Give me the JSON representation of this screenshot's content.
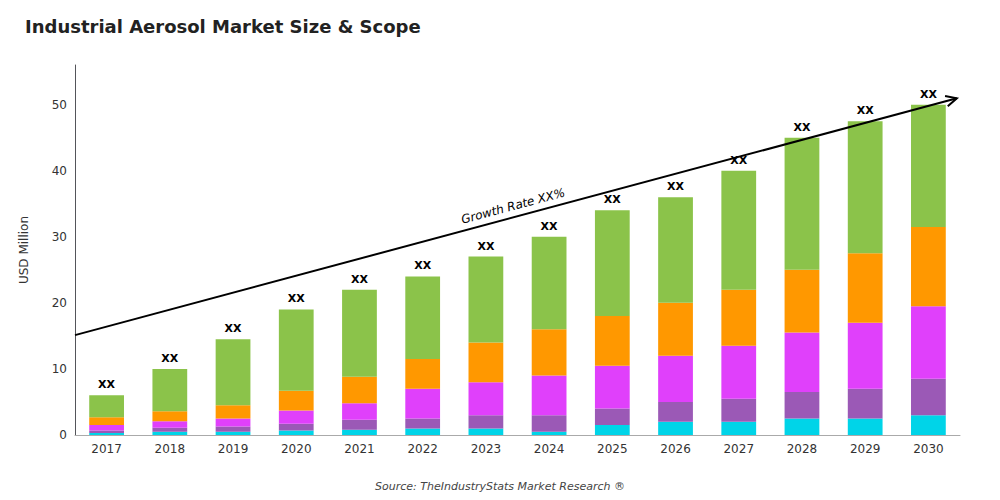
{
  "chart_data": {
    "type": "bar",
    "title": "Industrial Aerosol Market Size & Scope",
    "ylabel": "USD Million",
    "source": "Source: TheIndustryStats Market Research ®",
    "categories": [
      "2017",
      "2018",
      "2019",
      "2020",
      "2021",
      "2022",
      "2023",
      "2024",
      "2025",
      "2026",
      "2027",
      "2028",
      "2029",
      "2030"
    ],
    "stacked": true,
    "series": [
      {
        "color": "#00d4e8",
        "values": [
          0.3,
          0.5,
          0.5,
          0.7,
          0.8,
          1.0,
          1.0,
          0.5,
          1.5,
          2.0,
          2.0,
          2.5,
          2.5,
          3.0
        ]
      },
      {
        "color": "#9b59b6",
        "values": [
          0.4,
          0.6,
          0.8,
          1.0,
          1.5,
          1.5,
          2.0,
          2.5,
          2.5,
          3.0,
          3.5,
          4.0,
          4.5,
          5.5
        ]
      },
      {
        "color": "#e040fb",
        "values": [
          0.8,
          1.0,
          1.2,
          2.0,
          2.5,
          4.5,
          5.0,
          6.0,
          6.5,
          7.0,
          8.0,
          9.0,
          10.0,
          11.0
        ]
      },
      {
        "color": "#ff9800",
        "values": [
          1.2,
          1.5,
          2.0,
          3.0,
          4.0,
          4.5,
          6.0,
          7.0,
          7.5,
          8.0,
          8.5,
          9.5,
          10.5,
          12.0
        ]
      },
      {
        "color": "#8bc34a",
        "values": [
          3.3,
          6.4,
          10.0,
          12.3,
          13.2,
          12.5,
          13.0,
          14.0,
          16.0,
          16.0,
          18.0,
          20.0,
          20.0,
          18.5
        ]
      }
    ],
    "ylim": [
      0,
      56
    ],
    "yticks": [
      0,
      10,
      20,
      30,
      40,
      50
    ],
    "grid": false,
    "annotations": [
      {
        "text": "XX",
        "category": "2017"
      },
      {
        "text": "XX",
        "category": "2018"
      },
      {
        "text": "XX",
        "category": "2019"
      },
      {
        "text": "XX",
        "category": "2020"
      },
      {
        "text": "XX",
        "category": "2021"
      },
      {
        "text": "XX",
        "category": "2022"
      },
      {
        "text": "XX",
        "category": "2023"
      },
      {
        "text": "XX",
        "category": "2024"
      },
      {
        "text": "XX",
        "category": "2025"
      },
      {
        "text": "XX",
        "category": "2026"
      },
      {
        "text": "XX",
        "category": "2027"
      },
      {
        "text": "XX",
        "category": "2028"
      },
      {
        "text": "XX",
        "category": "2029"
      },
      {
        "text": "XX",
        "category": "2030"
      },
      {
        "text": "Growth Rate XX%"
      }
    ]
  }
}
